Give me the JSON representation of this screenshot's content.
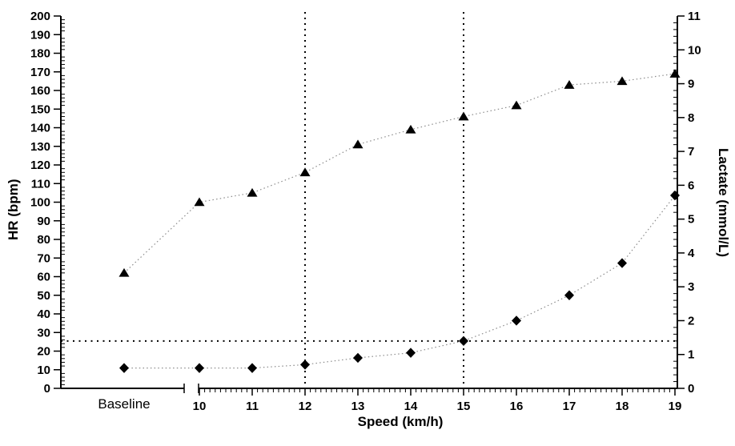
{
  "chart_data": {
    "type": "line",
    "title": "",
    "background": "#ffffff",
    "foreground": "#000000",
    "connector_color": "#8c8c8c",
    "legend": "none",
    "x_axis": {
      "label": "Speed (km/h)",
      "categories": [
        "Baseline",
        "10",
        "11",
        "12",
        "13",
        "14",
        "15",
        "16",
        "17",
        "18",
        "19"
      ],
      "numeric_start": 10,
      "numeric_end": 19,
      "major_step": 1,
      "minor_step": 0.1,
      "axis_break_after_first_category": true
    },
    "left_axis": {
      "label": "HR (bpm)",
      "min": 0,
      "max": 200,
      "major_step": 10,
      "minor_step": 2
    },
    "right_axis": {
      "label": "Lactate (mmol/L)",
      "min": 0,
      "max": 11,
      "major_step": 1,
      "minor_step": 0.2
    },
    "series": [
      {
        "name": "HR",
        "axis": "left",
        "marker": "triangle",
        "color": "#000000",
        "connector": "dotted",
        "values": [
          62,
          100,
          105,
          116,
          131,
          139,
          146,
          152,
          163,
          165,
          169
        ]
      },
      {
        "name": "Lactate",
        "axis": "right",
        "marker": "diamond",
        "color": "#000000",
        "connector": "dotted",
        "values": [
          0.6,
          0.6,
          0.6,
          0.7,
          0.9,
          1.05,
          1.4,
          2.0,
          2.75,
          3.7,
          5.7
        ]
      }
    ],
    "reference_lines": [
      {
        "orientation": "vertical",
        "at_speed": 12,
        "style": "dotted",
        "color": "#000000"
      },
      {
        "orientation": "vertical",
        "at_speed": 15,
        "style": "dotted",
        "color": "#000000"
      },
      {
        "orientation": "horizontal",
        "axis": "right",
        "at_lactate": 1.4,
        "style": "dotted",
        "color": "#000000"
      }
    ]
  }
}
